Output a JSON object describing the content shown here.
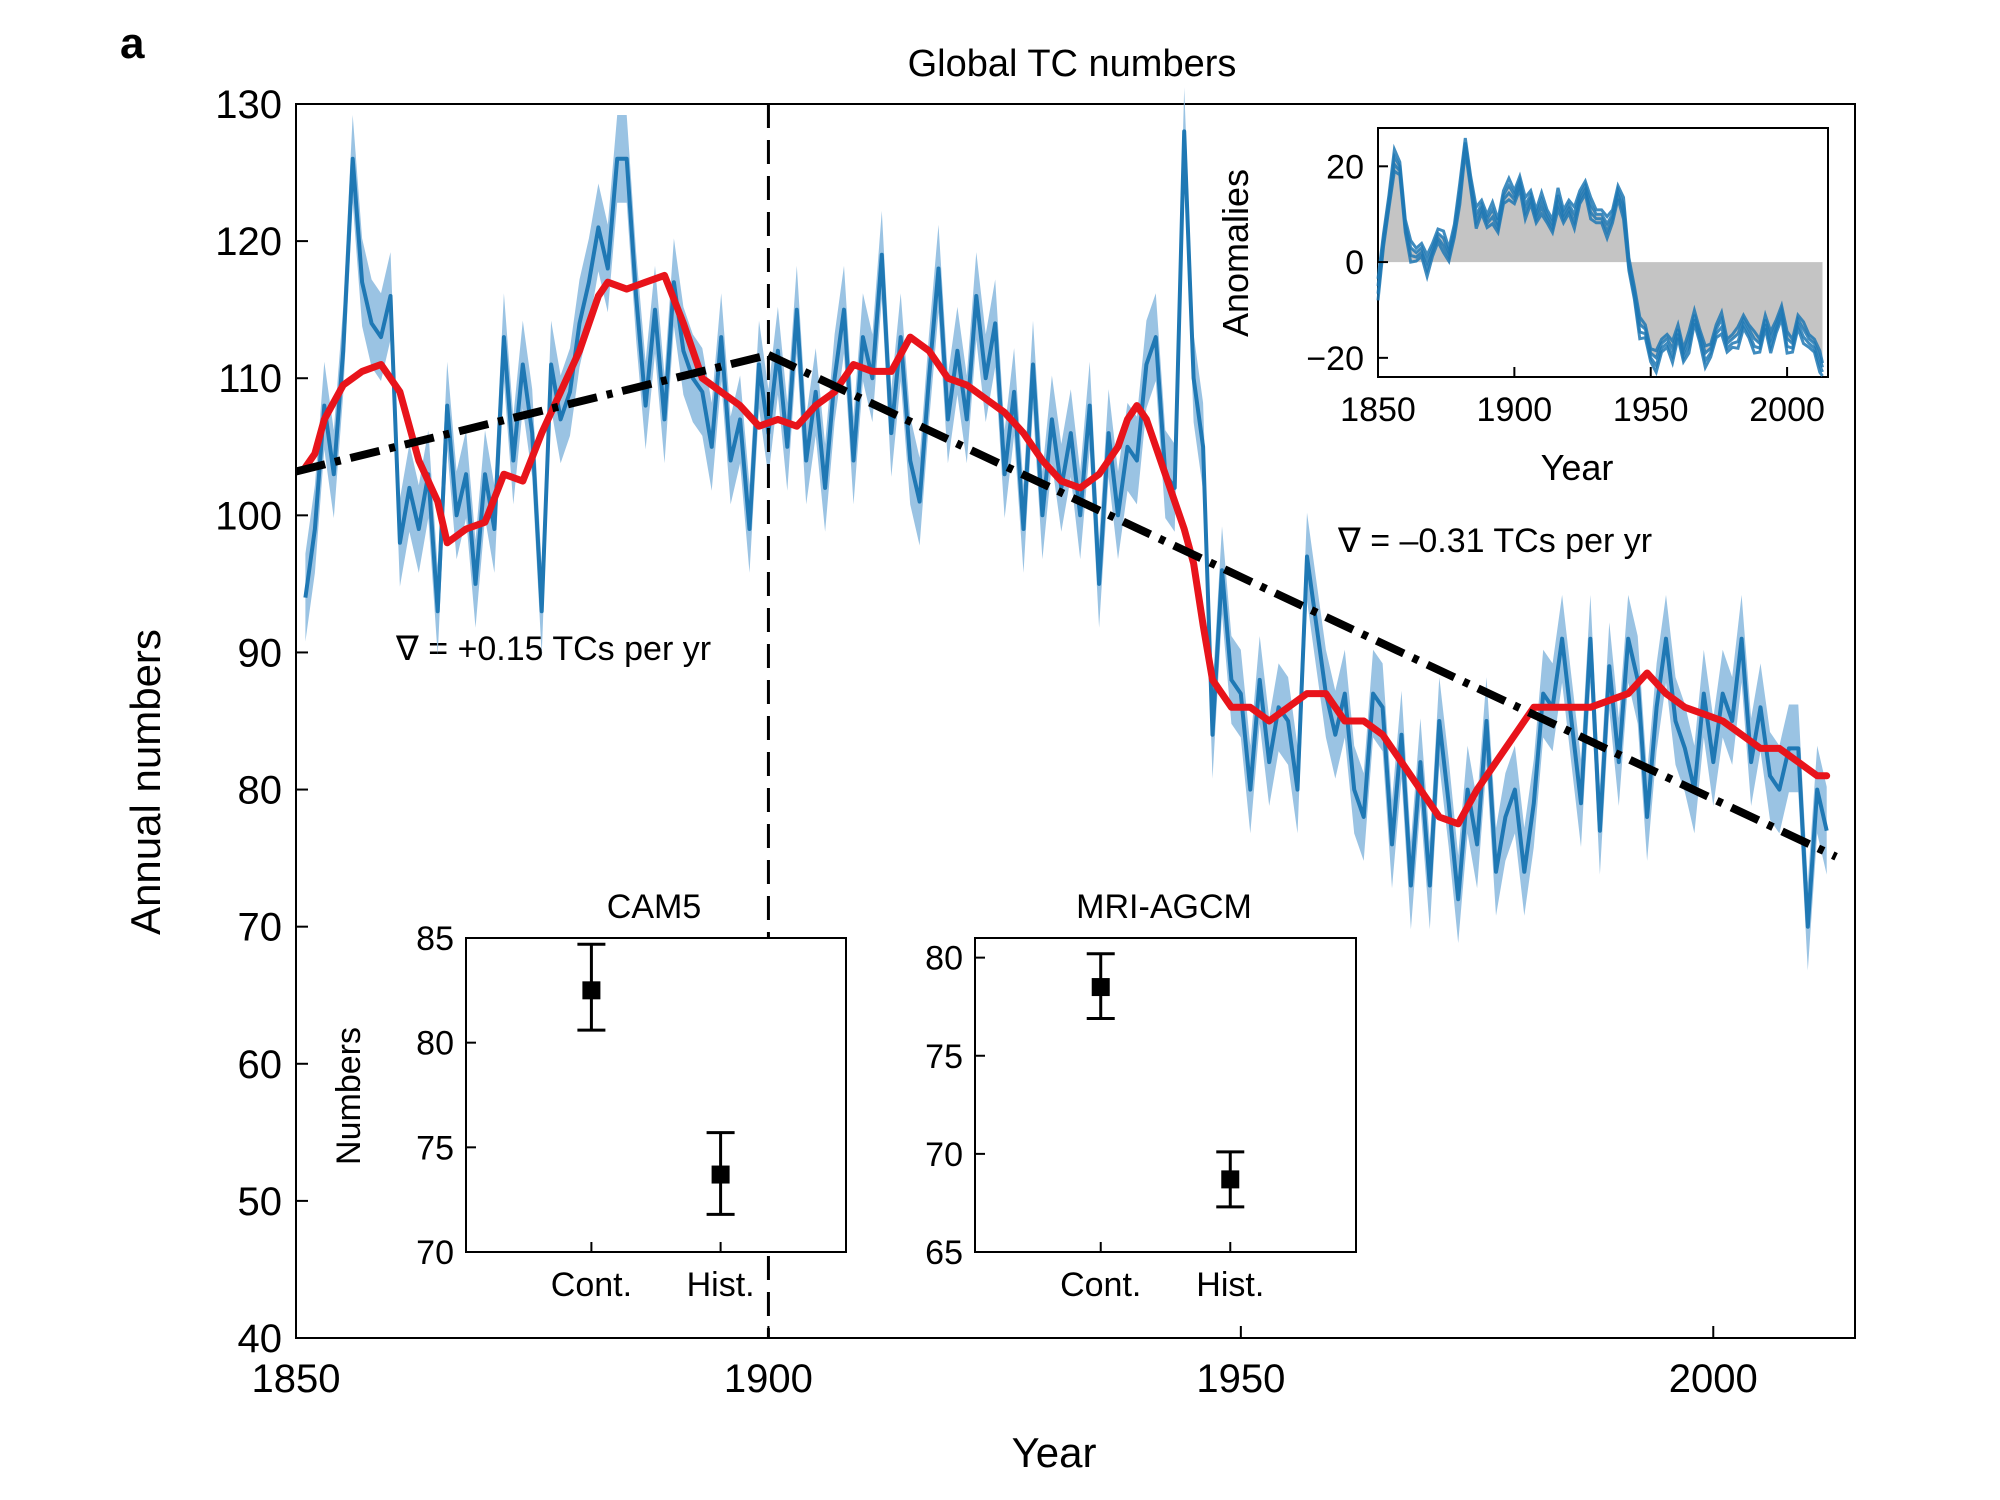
{
  "panel_label": "a",
  "colors": {
    "series": "#1f78b4",
    "band": "#8fbde0",
    "smooth": "#e8141b",
    "trend": "#000000",
    "inset_fill": "#c4c4c4"
  },
  "chart_data": [
    {
      "type": "line",
      "title": "Global TC numbers",
      "xlabel": "Year",
      "ylabel": "Annual numbers",
      "xlim": [
        1850,
        2015
      ],
      "ylim": [
        40,
        130
      ],
      "xticks": [
        1850,
        1900,
        1950,
        2000
      ],
      "yticks": [
        40,
        50,
        60,
        70,
        80,
        90,
        100,
        110,
        120,
        130
      ],
      "grid": false,
      "breakpoint_year": 1900,
      "annual": {
        "x": [
          1851,
          1852,
          1853,
          1854,
          1855,
          1856,
          1857,
          1858,
          1859,
          1860,
          1861,
          1862,
          1863,
          1864,
          1865,
          1866,
          1867,
          1868,
          1869,
          1870,
          1871,
          1872,
          1873,
          1874,
          1875,
          1876,
          1877,
          1878,
          1879,
          1880,
          1881,
          1882,
          1883,
          1884,
          1885,
          1886,
          1887,
          1888,
          1889,
          1890,
          1891,
          1892,
          1893,
          1894,
          1895,
          1896,
          1897,
          1898,
          1899,
          1900,
          1901,
          1902,
          1903,
          1904,
          1905,
          1906,
          1907,
          1908,
          1909,
          1910,
          1911,
          1912,
          1913,
          1914,
          1915,
          1916,
          1917,
          1918,
          1919,
          1920,
          1921,
          1922,
          1923,
          1924,
          1925,
          1926,
          1927,
          1928,
          1929,
          1930,
          1931,
          1932,
          1933,
          1934,
          1935,
          1936,
          1937,
          1938,
          1939,
          1940,
          1941,
          1942,
          1943,
          1944,
          1945,
          1946,
          1947,
          1948,
          1949,
          1950,
          1951,
          1952,
          1953,
          1954,
          1955,
          1956,
          1957,
          1958,
          1959,
          1960,
          1961,
          1962,
          1963,
          1964,
          1965,
          1966,
          1967,
          1968,
          1969,
          1970,
          1971,
          1972,
          1973,
          1974,
          1975,
          1976,
          1977,
          1978,
          1979,
          1980,
          1981,
          1982,
          1983,
          1984,
          1985,
          1986,
          1987,
          1988,
          1989,
          1990,
          1991,
          1992,
          1993,
          1994,
          1995,
          1996,
          1997,
          1998,
          1999,
          2000,
          2001,
          2002,
          2003,
          2004,
          2005,
          2006,
          2007,
          2008,
          2009,
          2010,
          2011,
          2012
        ],
        "y": [
          94,
          99,
          108,
          103,
          112,
          126,
          117,
          114,
          113,
          116,
          98,
          102,
          99,
          103,
          93,
          108,
          100,
          103,
          95,
          103,
          99,
          113,
          104,
          111,
          106,
          93,
          111,
          107,
          109,
          114,
          117,
          121,
          118,
          126,
          126,
          116,
          108,
          115,
          107,
          117,
          112,
          110,
          109,
          105,
          113,
          104,
          107,
          99,
          111,
          106,
          112,
          105,
          115,
          104,
          109,
          102,
          110,
          115,
          104,
          113,
          110,
          119,
          106,
          113,
          104,
          101,
          110,
          118,
          107,
          112,
          107,
          116,
          110,
          114,
          103,
          109,
          99,
          111,
          100,
          107,
          102,
          106,
          100,
          108,
          95,
          106,
          100,
          105,
          104,
          111,
          113,
          103,
          102,
          128,
          110,
          105,
          84,
          96,
          88,
          87,
          80,
          88,
          82,
          86,
          85,
          80,
          97,
          92,
          87,
          84,
          87,
          80,
          78,
          87,
          86,
          76,
          84,
          73,
          82,
          73,
          85,
          79,
          72,
          80,
          76,
          85,
          74,
          78,
          80,
          74,
          79,
          87,
          86,
          91,
          85,
          79,
          91,
          77,
          89,
          82,
          91,
          88,
          78,
          86,
          91,
          85,
          83,
          80,
          87,
          82,
          87,
          85,
          91,
          82,
          86,
          81,
          80,
          83,
          83,
          70,
          80,
          77
        ],
        "band_half_width": 3.2
      },
      "smoothed": {
        "x": [
          1851,
          1852,
          1853,
          1855,
          1857,
          1859,
          1861,
          1863,
          1865,
          1866,
          1868,
          1870,
          1872,
          1874,
          1876,
          1878,
          1880,
          1882,
          1883,
          1885,
          1887,
          1889,
          1891,
          1893,
          1895,
          1897,
          1899,
          1901,
          1903,
          1905,
          1907,
          1909,
          1911,
          1913,
          1915,
          1917,
          1919,
          1921,
          1923,
          1925,
          1927,
          1929,
          1931,
          1933,
          1935,
          1937,
          1938,
          1939,
          1940,
          1942,
          1944,
          1945,
          1946,
          1947,
          1949,
          1951,
          1953,
          1955,
          1957,
          1959,
          1961,
          1963,
          1965,
          1967,
          1969,
          1971,
          1973,
          1975,
          1977,
          1979,
          1981,
          1983,
          1985,
          1987,
          1989,
          1991,
          1993,
          1995,
          1997,
          1999,
          2001,
          2003,
          2005,
          2007,
          2009,
          2011,
          2012
        ],
        "y": [
          103.5,
          104.5,
          107,
          109.5,
          110.5,
          111,
          109,
          104,
          101,
          98,
          99,
          99.5,
          103,
          102.5,
          106,
          109,
          112,
          116,
          117,
          116.5,
          117,
          117.5,
          114,
          110,
          109,
          108,
          106.5,
          107,
          106.5,
          108,
          109,
          111,
          110.5,
          110.5,
          113,
          112,
          110,
          109.5,
          108.5,
          107.5,
          106,
          104,
          102.5,
          102,
          103,
          105,
          107,
          108,
          107,
          103,
          99,
          96.5,
          92,
          88,
          86,
          86,
          85,
          86,
          87,
          87,
          85,
          85,
          84,
          82,
          80,
          78,
          77.5,
          80,
          82,
          84,
          86,
          86,
          86,
          86,
          86.5,
          87,
          88.5,
          87,
          86,
          85.5,
          85,
          84,
          83,
          83,
          82,
          81,
          81
        ]
      },
      "trend_lines": [
        {
          "x": [
            1850,
            1900
          ],
          "y": [
            103.2,
            111.7
          ],
          "label": "∇ = +0.15 TCs per yr"
        },
        {
          "x": [
            1900,
            2013
          ],
          "y": [
            111.7,
            75.1
          ],
          "label": "∇ = –0.31 TCs per yr"
        }
      ]
    },
    {
      "type": "area",
      "inset": "top-right",
      "xlabel": "Year",
      "ylabel": "Anomalies",
      "xlim": [
        1850,
        2015
      ],
      "ylim": [
        -24,
        28
      ],
      "xticks": [
        1850,
        1900,
        1950,
        2000
      ],
      "yticks": [
        -20,
        0,
        20
      ],
      "fill_x": [
        1850,
        1852,
        1854,
        1856,
        1858,
        1860,
        1862,
        1864,
        1866,
        1868,
        1870,
        1872,
        1874,
        1876,
        1878,
        1880,
        1882,
        1884,
        1886,
        1888,
        1890,
        1892,
        1894,
        1896,
        1898,
        1900,
        1902,
        1904,
        1906,
        1908,
        1910,
        1912,
        1914,
        1916,
        1918,
        1920,
        1922,
        1924,
        1926,
        1928,
        1930,
        1932,
        1934,
        1936,
        1938,
        1940,
        1942,
        1944,
        1946,
        1948,
        1950,
        1952,
        1954,
        1956,
        1958,
        1960,
        1962,
        1964,
        1966,
        1968,
        1970,
        1972,
        1974,
        1976,
        1978,
        1980,
        1982,
        1984,
        1986,
        1988,
        1990,
        1992,
        1994,
        1996,
        1998,
        2000,
        2002,
        2004,
        2006,
        2008,
        2010,
        2012,
        2013
      ],
      "fill_y": [
        -5,
        5,
        13,
        22,
        20,
        8,
        3,
        2,
        3,
        0,
        3,
        6,
        5,
        2,
        7,
        15,
        25,
        17,
        10,
        12,
        9,
        11,
        8,
        14,
        16,
        14,
        17,
        12,
        14,
        10,
        13,
        10,
        8,
        14,
        10,
        12,
        10,
        14,
        16,
        12,
        10,
        10,
        8,
        10,
        15,
        12,
        0,
        -6,
        -13,
        -14,
        -19,
        -20,
        -17,
        -16,
        -18,
        -14,
        -19,
        -16,
        -11,
        -15,
        -19,
        -18,
        -14,
        -12,
        -17,
        -16,
        -15,
        -12,
        -14,
        -16,
        -17,
        -12,
        -16,
        -13,
        -10,
        -16,
        -17,
        -12,
        -14,
        -16,
        -17,
        -20,
        -22
      ],
      "series": [
        {
          "values_offset": 0
        },
        {
          "values_offset": -1.6
        },
        {
          "values_offset": 1.5
        },
        {
          "values_offset": -3
        }
      ]
    },
    {
      "type": "scatter",
      "title": "CAM5",
      "ylabel": "Numbers",
      "categories": [
        "Cont.",
        "Hist."
      ],
      "values": [
        82.5,
        73.7
      ],
      "errors": [
        [
          80.6,
          84.7
        ],
        [
          71.8,
          75.7
        ]
      ],
      "ylim": [
        70,
        85
      ],
      "yticks": [
        70,
        75,
        80,
        85
      ]
    },
    {
      "type": "scatter",
      "title": "MRI-AGCM",
      "categories": [
        "Cont.",
        "Hist."
      ],
      "values": [
        78.5,
        68.7
      ],
      "errors": [
        [
          76.9,
          80.2
        ],
        [
          67.3,
          70.1
        ]
      ],
      "ylim": [
        65,
        81
      ],
      "yticks": [
        65,
        70,
        75,
        80
      ]
    }
  ]
}
